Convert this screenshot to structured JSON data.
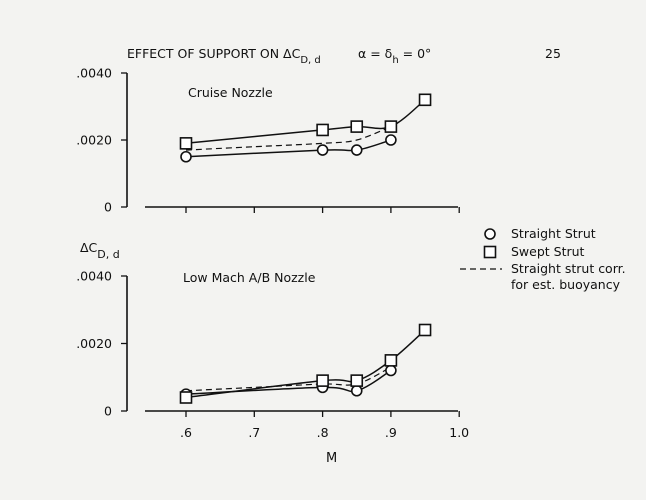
{
  "header": {
    "title_prefix": "EFFECT OF SUPPORT ON ΔC",
    "title_sub": "D, d",
    "condition_a": "α = δ",
    "condition_sub": "h",
    "condition_b": " = 0°",
    "page_number": "25"
  },
  "ylabel": {
    "main": "ΔC",
    "sub": "D, d"
  },
  "legend": {
    "straight": "Straight Strut",
    "swept": "Swept Strut",
    "corr_line1": "Straight strut corr.",
    "corr_line2": "for est. buoyancy"
  },
  "chart_data": [
    {
      "type": "line",
      "title": "Cruise Nozzle",
      "xlabel": "",
      "ylabel": "ΔC D, d",
      "xlim": [
        0.55,
        1.0
      ],
      "ylim": [
        0,
        0.004
      ],
      "yticks": [
        0,
        0.002,
        0.004
      ],
      "ytick_labels": [
        "0",
        ".0020",
        ".0040"
      ],
      "series": [
        {
          "name": "Straight Strut",
          "marker": "circle",
          "style": "solid",
          "x": [
            0.6,
            0.8,
            0.85,
            0.9
          ],
          "y": [
            0.0015,
            0.0017,
            0.0017,
            0.002
          ]
        },
        {
          "name": "Swept Strut",
          "marker": "square",
          "style": "solid",
          "x": [
            0.6,
            0.8,
            0.85,
            0.9,
            0.95
          ],
          "y": [
            0.0019,
            0.0023,
            0.0024,
            0.0024,
            0.0032
          ]
        },
        {
          "name": "Straight strut corr. for est. buoyancy",
          "marker": "none",
          "style": "dashed",
          "x": [
            0.6,
            0.7,
            0.8,
            0.85,
            0.9
          ],
          "y": [
            0.0017,
            0.0018,
            0.0019,
            0.002,
            0.0024
          ]
        }
      ]
    },
    {
      "type": "line",
      "title": "Low Mach A/B Nozzle",
      "xlabel": "M",
      "ylabel": "ΔC D, d",
      "xlim": [
        0.55,
        1.0
      ],
      "ylim": [
        0,
        0.004
      ],
      "xticks": [
        0.6,
        0.7,
        0.8,
        0.9,
        1.0
      ],
      "xtick_labels": [
        ".6",
        ".7",
        ".8",
        ".9",
        "1.0"
      ],
      "yticks": [
        0,
        0.002,
        0.004
      ],
      "ytick_labels": [
        "0",
        ".0020",
        ".0040"
      ],
      "series": [
        {
          "name": "Straight Strut",
          "marker": "circle",
          "style": "solid",
          "x": [
            0.6,
            0.8,
            0.85,
            0.9
          ],
          "y": [
            0.0005,
            0.0007,
            0.0006,
            0.0012
          ]
        },
        {
          "name": "Swept Strut",
          "marker": "square",
          "style": "solid",
          "x": [
            0.6,
            0.8,
            0.85,
            0.9,
            0.95
          ],
          "y": [
            0.0004,
            0.0009,
            0.0009,
            0.0015,
            0.0024
          ]
        },
        {
          "name": "Straight strut corr. for est. buoyancy",
          "marker": "none",
          "style": "dashed",
          "x": [
            0.6,
            0.7,
            0.8,
            0.85,
            0.9
          ],
          "y": [
            0.0006,
            0.0007,
            0.0008,
            0.0008,
            0.0013
          ]
        }
      ]
    }
  ]
}
